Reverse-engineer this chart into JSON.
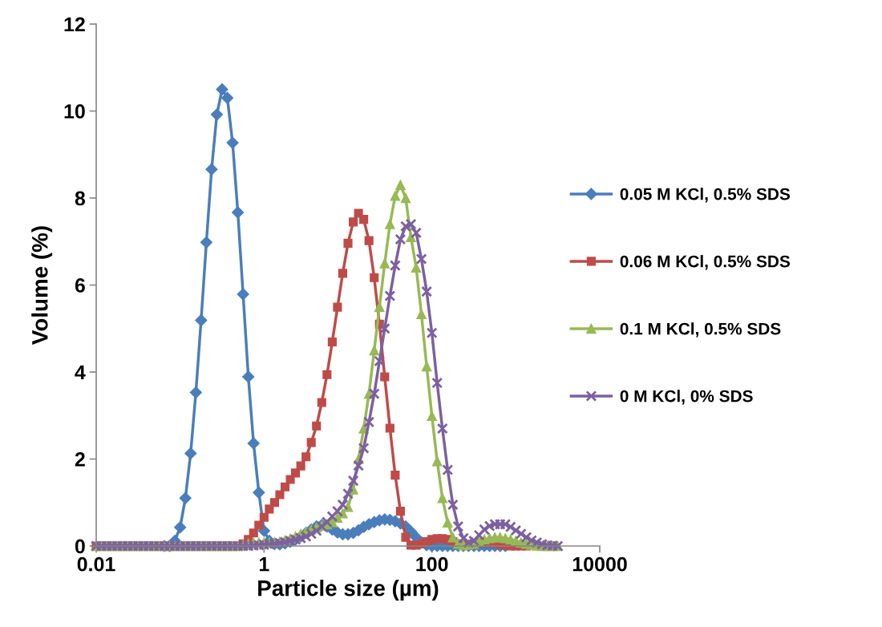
{
  "chart_data": {
    "type": "line",
    "xlabel": "Particle size (µm)",
    "ylabel": "Volume (%)",
    "log": "x",
    "grid": false,
    "legend": "right",
    "xlim": [
      0.01,
      10000
    ],
    "xticks": [
      {
        "value": 0.01,
        "label": "0.01"
      },
      1,
      100,
      10000
    ],
    "ylim": [
      0,
      12
    ],
    "yticks": [
      0,
      2,
      4,
      6,
      8,
      10,
      12
    ],
    "x": [
      0.01,
      0.01155,
      0.01334,
      0.0154,
      0.01778,
      0.02054,
      0.02371,
      0.02738,
      0.03162,
      0.03652,
      0.04217,
      0.0487,
      0.05623,
      0.06494,
      0.07499,
      0.0866,
      0.1,
      0.1155,
      0.1334,
      0.154,
      0.1778,
      0.2054,
      0.2371,
      0.2738,
      0.3162,
      0.3652,
      0.4217,
      0.487,
      0.5623,
      0.6494,
      0.7499,
      0.866,
      1,
      1.155,
      1.334,
      1.54,
      1.778,
      2.054,
      2.371,
      2.738,
      3.162,
      3.652,
      4.217,
      4.87,
      5.623,
      6.494,
      7.499,
      8.66,
      10,
      11.55,
      13.34,
      15.4,
      17.78,
      20.54,
      23.71,
      27.38,
      31.62,
      36.52,
      42.17,
      48.7,
      56.23,
      64.94,
      74.99,
      86.6,
      100,
      115.5,
      133.4,
      154,
      177.8,
      205.4,
      237.1,
      273.8,
      316.2,
      365.2,
      421.7,
      487,
      562.3,
      649.4,
      749.9,
      866,
      1000,
      1155,
      1334,
      1540,
      1778,
      2054,
      2371,
      2738,
      3162
    ],
    "series": [
      {
        "name": "0.05 M KCl, 0.5% SDS",
        "color": "#4a7ebb",
        "marker": "diamond",
        "values": [
          null,
          null,
          null,
          null,
          null,
          null,
          null,
          null,
          null,
          null,
          null,
          null,
          null,
          0,
          0,
          0.12,
          0.43,
          1.1,
          2.13,
          3.53,
          5.19,
          6.98,
          8.66,
          9.92,
          10.5,
          10.3,
          9.27,
          7.67,
          5.79,
          3.89,
          2.36,
          1.23,
          0.35,
          0.12,
          0.05,
          0.04,
          0.06,
          0.1,
          0.15,
          0.22,
          0.3,
          0.38,
          0.45,
          0.48,
          0.45,
          0.38,
          0.31,
          0.27,
          0.27,
          0.3,
          0.36,
          0.44,
          0.5,
          0.55,
          0.59,
          0.61,
          0.6,
          0.57,
          0.52,
          0.45,
          0.33,
          0.2,
          0.08,
          0.02,
          0,
          0,
          0,
          0,
          0,
          0,
          0,
          0,
          0,
          0,
          0,
          0,
          0,
          0,
          0,
          null,
          null,
          null,
          null,
          null,
          null,
          null,
          null,
          null,
          null
        ]
      },
      {
        "name": "0.06 M KCl, 0.5% SDS",
        "color": "#be4b48",
        "marker": "square",
        "values": [
          0,
          0,
          0,
          0,
          0,
          0,
          0,
          0,
          0,
          0,
          0,
          0,
          0,
          0,
          0,
          0,
          0,
          0,
          0,
          0,
          0,
          0,
          0,
          0,
          0,
          0,
          0,
          0,
          0.05,
          0.15,
          0.3,
          0.48,
          0.66,
          0.85,
          1.0,
          1.18,
          1.36,
          1.53,
          1.68,
          1.84,
          2.05,
          2.38,
          2.76,
          3.3,
          3.94,
          4.69,
          5.49,
          6.27,
          6.96,
          7.45,
          7.65,
          7.51,
          7.02,
          6.17,
          5.1,
          3.89,
          2.71,
          1.63,
          0.8,
          0.2,
          0.02,
          0.02,
          0.05,
          0.1,
          0.15,
          0.17,
          0.17,
          0.15,
          0.1,
          0.05,
          0.02,
          0.02,
          0.05,
          0.07,
          0.08,
          0.08,
          0.06,
          0.04,
          0.02,
          0,
          0,
          0,
          0,
          null,
          null,
          null,
          null,
          null,
          null
        ]
      },
      {
        "name": "0.1 M KCl, 0.5% SDS",
        "color": "#98b954",
        "marker": "triangle",
        "values": [
          0,
          0,
          0,
          0,
          0,
          0,
          0,
          0,
          0,
          0,
          0,
          0,
          0,
          0,
          0,
          0,
          0,
          0,
          0,
          0,
          0,
          0,
          0,
          0,
          0,
          0,
          0,
          0,
          0.02,
          0.05,
          0.07,
          0.08,
          0.08,
          0.08,
          0.09,
          0.1,
          0.13,
          0.17,
          0.22,
          0.28,
          0.33,
          0.38,
          0.43,
          0.47,
          0.5,
          0.55,
          0.65,
          0.75,
          0.9,
          1.3,
          2.0,
          2.7,
          3.5,
          4.5,
          5.5,
          6.5,
          7.4,
          8.05,
          8.3,
          8.0,
          7.1,
          6.4,
          5.33,
          4.13,
          2.99,
          1.95,
          1.1,
          0.54,
          0.2,
          0.05,
          0.02,
          0.03,
          0.05,
          0.1,
          0.15,
          0.18,
          0.2,
          0.2,
          0.18,
          0.15,
          0.12,
          0.08,
          0.05,
          0.03,
          0.01,
          0,
          0,
          0,
          0
        ]
      },
      {
        "name": "0 M KCl, 0% SDS",
        "color": "#7d60a0",
        "marker": "cross",
        "values": [
          0,
          0,
          0,
          0,
          0,
          0,
          0,
          0,
          0,
          0,
          0,
          0,
          0,
          0,
          0,
          0,
          0,
          0,
          0,
          0,
          0,
          0,
          0,
          0,
          0,
          0,
          0,
          0,
          0,
          0,
          0.01,
          0.02,
          0.03,
          0.04,
          0.05,
          0.07,
          0.09,
          0.12,
          0.15,
          0.18,
          0.22,
          0.28,
          0.35,
          0.45,
          0.55,
          0.68,
          0.8,
          0.95,
          1.2,
          1.5,
          1.85,
          2.25,
          2.85,
          3.5,
          4.25,
          5.0,
          5.75,
          6.45,
          7.05,
          7.35,
          7.4,
          7.2,
          6.6,
          5.85,
          4.9,
          3.75,
          2.7,
          1.75,
          0.95,
          0.45,
          0.18,
          0.08,
          0.12,
          0.25,
          0.38,
          0.46,
          0.5,
          0.5,
          0.5,
          0.44,
          0.36,
          0.28,
          0.2,
          0.13,
          0.08,
          0.04,
          0.02,
          0.01,
          0
        ]
      }
    ]
  }
}
